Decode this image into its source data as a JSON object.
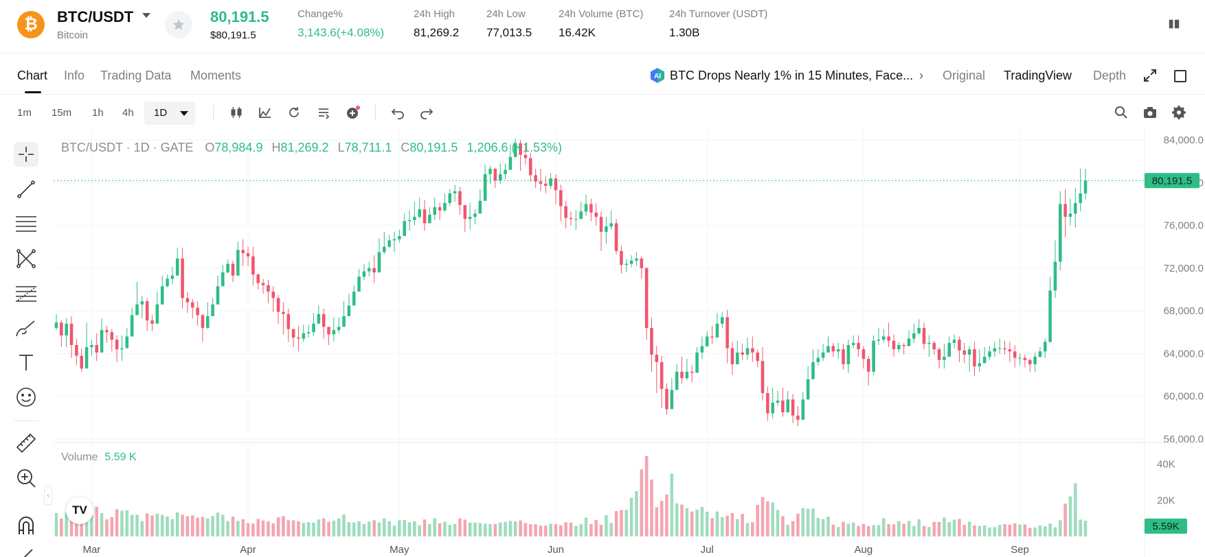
{
  "ticker": {
    "pair": "BTC/USDT",
    "coin_name": "Bitcoin",
    "logo_glyph": "₿",
    "last_price": "80,191.5",
    "last_price_usd": "$80,191.5",
    "stats": [
      {
        "label": "Change%",
        "value": "3,143.6(+4.08%)",
        "up": true
      },
      {
        "label": "24h High",
        "value": "81,269.2"
      },
      {
        "label": "24h Low",
        "value": "77,013.5"
      },
      {
        "label": "24h Volume (BTC)",
        "value": "16.42K"
      },
      {
        "label": "24h Turnover (USDT)",
        "value": "1.30B"
      }
    ]
  },
  "tabs": [
    "Chart",
    "Info",
    "Trading Data",
    "Moments"
  ],
  "active_tab": "Chart",
  "news": {
    "icon": "ai-badge-icon",
    "text": "BTC Drops Nearly 1% in 15 Minutes, Face..."
  },
  "views": [
    "Original",
    "TradingView",
    "Depth"
  ],
  "selected_view": "TradingView",
  "toolbar": {
    "timeframes": [
      "1m",
      "15m",
      "1h",
      "4h",
      "1D"
    ],
    "selected_timeframe": "1D"
  },
  "legend": {
    "symbol": "BTC/USDT · 1D · GATE",
    "o_label": "O",
    "o": "78,984.9",
    "h_label": "H",
    "h": "81,269.2",
    "l_label": "L",
    "l": "78,711.1",
    "c_label": "C",
    "c": "80,191.5",
    "change": "1,206.6 (+1.53%)"
  },
  "volume_legend": {
    "label": "Volume",
    "value": "5.59 K"
  },
  "tv_logo": "TV",
  "colors": {
    "up": "#2ebd85",
    "down": "#f0566e",
    "up_vol": "#9fdcc0",
    "down_vol": "#f5a5b0",
    "accent": "#2ebd85"
  },
  "chart_data": {
    "type": "candlestick",
    "price_axis": {
      "min": 56000,
      "max": 84000,
      "ticks": [
        "84,000.0",
        "80,000.0",
        "76,000.0",
        "72,000.0",
        "68,000.0",
        "64,000.0",
        "60,000.0",
        "56,000.0"
      ]
    },
    "last_price_label": "80,191.5",
    "volume_axis": {
      "ticks": [
        "40K",
        "20K"
      ]
    },
    "volume_last_label": "5.59K",
    "x_labels": [
      "Mar",
      "Apr",
      "May",
      "Jun",
      "Jul",
      "Aug",
      "Sep"
    ],
    "date_range": [
      "2024-02-23",
      "2024-08-22"
    ],
    "close_series": [
      66900,
      65700,
      66800,
      64800,
      63800,
      62600,
      64600,
      64800,
      64100,
      66200,
      66000,
      65300,
      64400,
      64500,
      65600,
      67600,
      68600,
      68900,
      67100,
      66800,
      68600,
      70300,
      71000,
      71300,
      72900,
      69200,
      68800,
      68300,
      67600,
      66400,
      67500,
      68600,
      70300,
      71600,
      72400,
      71300,
      73700,
      73400,
      73100,
      71400,
      70600,
      70400,
      69800,
      69200,
      67900,
      67700,
      66300,
      65500,
      65400,
      65900,
      66000,
      66800,
      67700,
      66500,
      65800,
      66200,
      66500,
      67500,
      68500,
      69800,
      71200,
      71700,
      72000,
      71600,
      73500,
      74000,
      74600,
      74700,
      75000,
      76400,
      76500,
      76800,
      77500,
      76200,
      77000,
      77700,
      77400,
      78100,
      79000,
      79200,
      77900,
      76600,
      76800,
      77100,
      78300,
      80800,
      81300,
      80200,
      80800,
      81200,
      82400,
      83700,
      82600,
      82300,
      80700,
      80100,
      79900,
      79700,
      80400,
      79300,
      77800,
      76700,
      76600,
      76600,
      77300,
      78000,
      77200,
      76800,
      75400,
      75900,
      76200,
      73600,
      72300,
      72400,
      72700,
      72900,
      72000,
      66400,
      63900,
      63200,
      60700,
      58800,
      60600,
      62300,
      61700,
      62300,
      62200,
      64100,
      64700,
      65600,
      65500,
      66800,
      67400,
      64500,
      63000,
      64100,
      63900,
      64500,
      64100,
      63300,
      60300,
      58400,
      59400,
      59600,
      58500,
      59700,
      58200,
      57800,
      59700,
      61600,
      63200,
      63600,
      64100,
      64700,
      64200,
      64400,
      63000,
      64800,
      65000,
      64400,
      63500,
      62300,
      65200,
      65300,
      65600,
      65200,
      64400,
      64800,
      64700,
      65400,
      65900,
      66400,
      64900,
      65000,
      64400,
      63400,
      63700,
      65000,
      65300,
      64300,
      63900,
      64400,
      62800,
      63100,
      63700,
      64200,
      64500,
      64500,
      64400,
      64200,
      63600,
      63600,
      63400,
      63000,
      63700,
      64200,
      65100,
      69900,
      72600,
      78000,
      76800,
      77100,
      78100,
      79000,
      80200
    ],
    "high_series": [
      67700,
      67100,
      67300,
      67500,
      65400,
      64500,
      66900,
      65300,
      65900,
      67300,
      66600,
      66300,
      65700,
      65700,
      66400,
      68300,
      70700,
      69400,
      69200,
      67600,
      69800,
      71300,
      71400,
      72100,
      73900,
      73900,
      69800,
      69100,
      68900,
      67700,
      68800,
      69200,
      71300,
      72300,
      72800,
      72700,
      74500,
      74700,
      74000,
      74000,
      71500,
      71000,
      70900,
      70300,
      69500,
      68800,
      68200,
      66300,
      66600,
      66700,
      66700,
      67800,
      68500,
      68200,
      66400,
      67400,
      67400,
      68900,
      69600,
      70400,
      71900,
      72400,
      72600,
      73200,
      74800,
      75400,
      75100,
      75400,
      75600,
      77100,
      77400,
      78200,
      78600,
      78400,
      77700,
      78600,
      78100,
      79000,
      79400,
      79800,
      79600,
      77600,
      78100,
      77500,
      79400,
      81700,
      81600,
      81400,
      81800,
      81800,
      83600,
      84100,
      84000,
      83700,
      82800,
      81300,
      81300,
      80600,
      80900,
      80800,
      79800,
      78300,
      77300,
      77400,
      78200,
      78900,
      78500,
      78100,
      77300,
      76800,
      77400,
      76600,
      74100,
      72800,
      73200,
      73500,
      73100,
      72100,
      67400,
      64700,
      63800,
      61200,
      61700,
      63000,
      63700,
      63500,
      62900,
      64600,
      65600,
      66100,
      66600,
      67800,
      67900,
      68100,
      65100,
      65200,
      64900,
      65500,
      65600,
      64400,
      64600,
      60900,
      60800,
      60500,
      60800,
      60500,
      60200,
      59100,
      60400,
      62800,
      64400,
      64400,
      64900,
      65600,
      65000,
      65000,
      64900,
      65300,
      65700,
      65700,
      64700,
      63800,
      65700,
      66400,
      66300,
      66900,
      65800,
      65100,
      65000,
      66200,
      66800,
      67200,
      66900,
      65700,
      65200,
      64600,
      64900,
      65600,
      65800,
      65600,
      65000,
      64700,
      65100,
      64400,
      64600,
      64700,
      65100,
      65400,
      65200,
      65100,
      64800,
      64000,
      63900,
      63500,
      64100,
      64600,
      65400,
      71200,
      74600,
      79200,
      79400,
      78500,
      79500,
      81300,
      81300
    ],
    "low_series": [
      66200,
      64600,
      64600,
      63600,
      62900,
      62300,
      62600,
      63800,
      63300,
      65400,
      65000,
      64200,
      63200,
      63300,
      64700,
      66900,
      67800,
      67300,
      66100,
      66100,
      67600,
      69000,
      70200,
      70500,
      72100,
      68200,
      67800,
      67300,
      66600,
      65100,
      66300,
      67500,
      69200,
      70700,
      71500,
      70700,
      72200,
      72200,
      72200,
      70400,
      70000,
      69600,
      68700,
      67900,
      66800,
      65800,
      65100,
      64600,
      64200,
      65100,
      65500,
      65700,
      67100,
      65400,
      64800,
      65100,
      65900,
      66600,
      67500,
      68800,
      70600,
      70900,
      71200,
      70600,
      72300,
      73300,
      73900,
      73500,
      74400,
      75600,
      75500,
      76000,
      76600,
      75500,
      76300,
      76500,
      76500,
      77300,
      77800,
      78200,
      77000,
      75400,
      75600,
      76100,
      77400,
      79600,
      79900,
      79500,
      79900,
      80300,
      81300,
      82600,
      81100,
      81700,
      80100,
      79500,
      79200,
      79000,
      79400,
      78000,
      76400,
      75700,
      76000,
      75600,
      76700,
      76900,
      76400,
      76000,
      73600,
      74300,
      75600,
      73300,
      71500,
      71600,
      72100,
      72200,
      71000,
      65300,
      62300,
      60300,
      58900,
      58300,
      59800,
      61800,
      61200,
      61500,
      61300,
      62800,
      63500,
      64600,
      64900,
      66100,
      66400,
      63100,
      62000,
      63100,
      63400,
      63400,
      63200,
      62700,
      59600,
      57700,
      57900,
      59100,
      58100,
      58700,
      57500,
      57200,
      58200,
      60500,
      62100,
      62900,
      63300,
      64200,
      63700,
      63500,
      62500,
      62200,
      64500,
      63700,
      62600,
      61000,
      62000,
      64800,
      65000,
      64600,
      63700,
      64100,
      63900,
      64700,
      65000,
      65800,
      64400,
      63700,
      63900,
      62600,
      62600,
      64500,
      64500,
      63200,
      63100,
      62300,
      61900,
      62300,
      63100,
      63400,
      63700,
      64000,
      63900,
      63200,
      62700,
      62900,
      62700,
      62300,
      62300,
      63600,
      63600,
      65000,
      69200,
      71800,
      74900,
      76000,
      75800,
      77300,
      78400
    ],
    "volume_series": [
      12900,
      9900,
      13200,
      11300,
      13400,
      14400,
      17800,
      11700,
      16400,
      12900,
      9500,
      10700,
      15000,
      14200,
      14400,
      11900,
      12000,
      8500,
      12700,
      11600,
      12500,
      11900,
      11000,
      9600,
      13300,
      12000,
      11200,
      11600,
      10400,
      10800,
      9900,
      11300,
      13200,
      12000,
      8500,
      11000,
      8600,
      9500,
      7400,
      7100,
      9700,
      8800,
      8300,
      7200,
      10600,
      11200,
      9000,
      8900,
      8400,
      7500,
      7900,
      7700,
      9400,
      10000,
      8100,
      8700,
      9900,
      12200,
      7900,
      7700,
      8400,
      7000,
      8200,
      8900,
      7700,
      9900,
      8500,
      6000,
      9000,
      9100,
      7800,
      8300,
      6200,
      9400,
      6900,
      10100,
      7200,
      8100,
      6400,
      6800,
      9900,
      9300,
      7700,
      7600,
      7400,
      7000,
      6800,
      6900,
      7700,
      8100,
      8600,
      8300,
      8800,
      7400,
      6800,
      6700,
      6000,
      5900,
      7000,
      6800,
      6200,
      7800,
      7600,
      5800,
      6800,
      10400,
      6800,
      9100,
      6500,
      11700,
      7400,
      14000,
      14600,
      14700,
      21400,
      25100,
      37100,
      44400,
      31500,
      16100,
      19700,
      23200,
      34800,
      18300,
      17600,
      15600,
      13800,
      14800,
      16300,
      13700,
      10100,
      13800,
      10700,
      11500,
      12900,
      9600,
      12500,
      7500,
      7900,
      17500,
      21800,
      19400,
      18800,
      14600,
      11200,
      6400,
      8500,
      12600,
      15700,
      15300,
      15500,
      10200,
      9600,
      11000,
      6500,
      5200,
      8100,
      7000,
      7700,
      5800,
      6900,
      5700,
      6200,
      6300,
      10100,
      6800,
      6600,
      8500,
      7000,
      8600,
      5800,
      9500,
      5700,
      5200,
      8100,
      8000,
      10500,
      7900,
      9300,
      9700,
      6500,
      8200,
      6100,
      5800,
      6100,
      5000,
      5200,
      6300,
      6800,
      6500,
      7200,
      6600,
      6600,
      4700,
      5000,
      6000,
      5600,
      7200,
      5000,
      8900,
      18100,
      22100,
      29400,
      9300,
      8700,
      15600,
      5600
    ]
  }
}
